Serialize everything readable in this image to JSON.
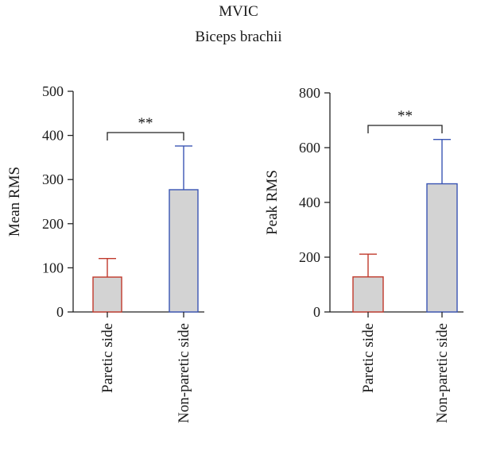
{
  "title": "MVIC",
  "subtitle": "Biceps brachii",
  "chart_data": [
    {
      "type": "bar",
      "categories": [
        "Paretic side",
        "Non-paretic side"
      ],
      "values": [
        79,
        277
      ],
      "error_upper": [
        121,
        376
      ],
      "bar_colors": [
        "#c0392b",
        "#3a55b4"
      ],
      "bar_fill": "#d3d3d3",
      "ylabel": "Mean RMS",
      "ylim": [
        0,
        500
      ],
      "yticks": [
        0,
        100,
        200,
        300,
        400,
        500
      ],
      "significance": "**"
    },
    {
      "type": "bar",
      "categories": [
        "Paretic side",
        "Non-paretic side"
      ],
      "values": [
        128,
        468
      ],
      "error_upper": [
        211,
        630
      ],
      "bar_colors": [
        "#c0392b",
        "#3a55b4"
      ],
      "bar_fill": "#d3d3d3",
      "ylabel": "Peak RMS",
      "ylim": [
        0,
        800
      ],
      "yticks": [
        0,
        200,
        400,
        600,
        800
      ],
      "significance": "**"
    }
  ]
}
